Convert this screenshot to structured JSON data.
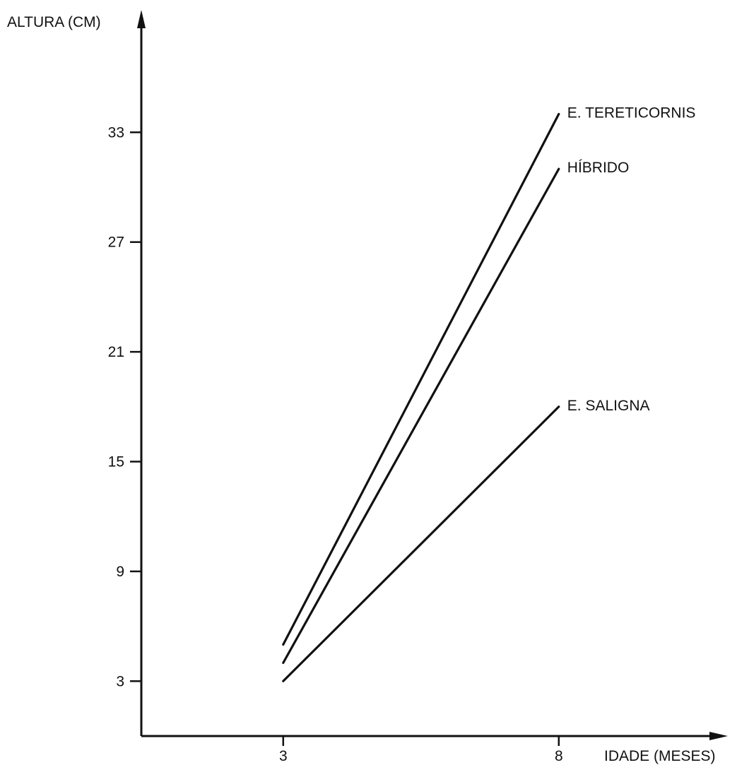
{
  "chart_data": {
    "type": "line",
    "title": "",
    "xlabel": "IDADE (MESES)",
    "ylabel": "ALTURA (CM)",
    "x_ticks": [
      3,
      8
    ],
    "y_ticks": [
      3,
      9,
      15,
      21,
      27,
      33
    ],
    "xlim": [
      0,
      10.9
    ],
    "ylim": [
      0,
      40
    ],
    "grid": false,
    "series": [
      {
        "name": "E. TERETICORNIS",
        "x": [
          3,
          8
        ],
        "values": [
          5,
          34
        ]
      },
      {
        "name": "HÍBRIDO",
        "x": [
          3,
          8
        ],
        "values": [
          4,
          31
        ]
      },
      {
        "name": "E. SALIGNA",
        "x": [
          3,
          8
        ],
        "values": [
          3,
          18
        ]
      }
    ]
  },
  "colors": {
    "ink": "#111111",
    "background": "#ffffff"
  }
}
